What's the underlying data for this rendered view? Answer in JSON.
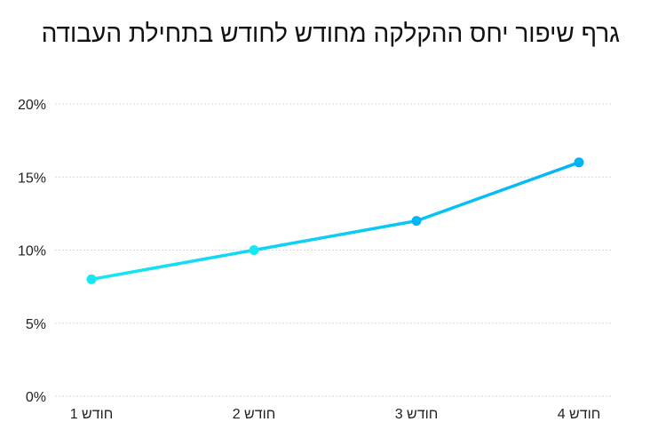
{
  "chart_data": {
    "type": "line",
    "title": "גרף שיפור יחס ההקלקה מחודש לחודש בתחילת העבודה",
    "xlabel": "",
    "ylabel": "",
    "categories": [
      "חודש 1",
      "חודש 2",
      "חודש 3",
      "חודש 4"
    ],
    "series": [
      {
        "values": [
          8,
          10,
          12,
          16
        ]
      }
    ],
    "ylim": [
      0,
      20
    ],
    "yticks": [
      0,
      5,
      10,
      15,
      20
    ],
    "ytick_labels": [
      "0%",
      "5%",
      "10%",
      "15%",
      "20%"
    ],
    "grid": "horizontal dotted",
    "legend": "none",
    "colors": {
      "line_start": "#18e6f2",
      "line_end": "#00b4f6",
      "grid": "#d4d4ec",
      "text": "#222222"
    }
  }
}
